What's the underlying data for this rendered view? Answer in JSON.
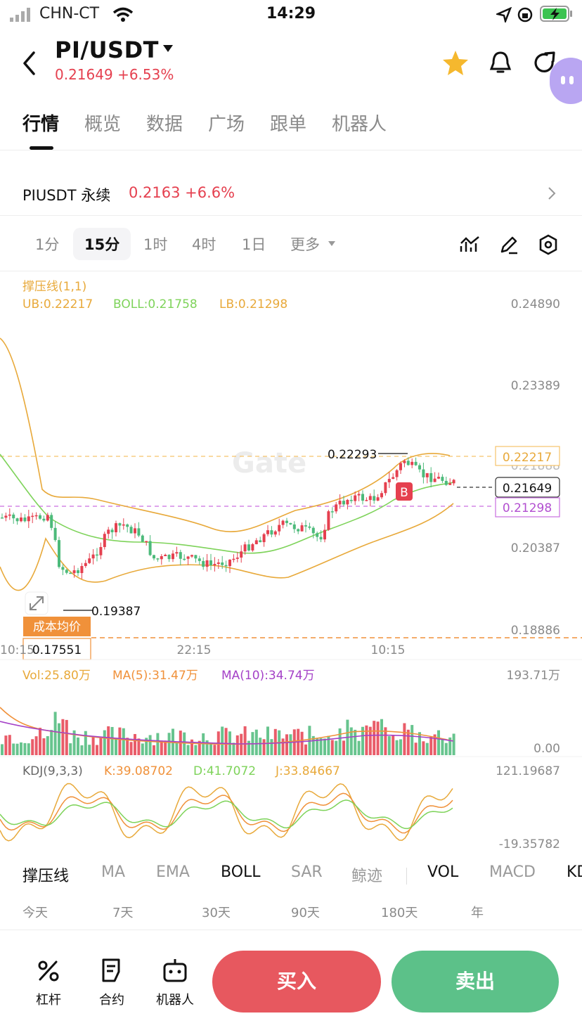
{
  "status_bar": {
    "carrier": "CHN-CT",
    "time": "14:29"
  },
  "header": {
    "pair": "PI/USDT",
    "price_change": "0.21649 +6.53%"
  },
  "tabs": [
    "行情",
    "概览",
    "数据",
    "广场",
    "跟单",
    "机器人"
  ],
  "perpetual": {
    "name": "PIUSDT 永续",
    "price": "0.2163 +6.6%"
  },
  "timeframes": [
    "1分",
    "15分",
    "1时",
    "4时",
    "1日",
    "更多"
  ],
  "selected_timeframe": "15分",
  "main_chart": {
    "title": "撑压线(1,1)",
    "ub": "UB:0.22217",
    "boll": "BOLL:0.21758",
    "lb": "LB:0.21298",
    "y_ticks": [
      "0.24890",
      "0.23389",
      "0.20387",
      "0.18886"
    ],
    "overlapped_tick": "0.21888",
    "x_ticks": [
      "10:15",
      "22:15",
      "10:15"
    ],
    "high_label": "0.22293",
    "low_label": "0.19387",
    "resistance_tag": "0.22217",
    "current_tag": "0.21649",
    "support_tag": "0.21298",
    "cost_label": "成本均价",
    "cost_value": "0.17551",
    "buy_marker": "B",
    "watermark": "Gate"
  },
  "volume": {
    "vol": "Vol:25.80万",
    "ma5": "MA(5):31.47万",
    "ma10": "MA(10):34.74万",
    "max": "193.71万",
    "min": "0.00"
  },
  "kdj": {
    "title": "KDJ(9,3,3)",
    "k": "K:39.08702",
    "d": "D:41.7072",
    "j": "J:33.84667",
    "max": "121.19687",
    "min": "-19.35782"
  },
  "indicator_tabs": [
    "撑压线",
    "MA",
    "EMA",
    "BOLL",
    "SAR",
    "鲸迹",
    "VOL",
    "MACD",
    "KD"
  ],
  "ranges": [
    "今天",
    "7天",
    "30天",
    "90天",
    "180天",
    "年"
  ],
  "bottom_nav": {
    "leverage": "杠杆",
    "contract": "合约",
    "bot": "机器人",
    "buy": "买入",
    "sell": "卖出"
  },
  "colors": {
    "up": "#e5404f",
    "down": "#4cba7a",
    "boll_band": "#e8a93a",
    "boll_mid": "#7ed35a",
    "ma10": "#a441c7"
  }
}
